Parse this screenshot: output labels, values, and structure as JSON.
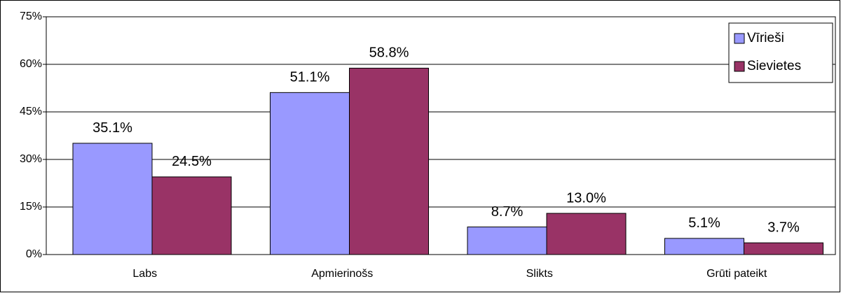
{
  "chart_data": {
    "type": "bar",
    "categories": [
      "Labs",
      "Apmierinošs",
      "Slikts",
      "Grūti pateikt"
    ],
    "series": [
      {
        "name": "Vīrieši",
        "color": "#9999ff",
        "values": [
          35.1,
          51.1,
          8.7,
          5.1
        ],
        "value_labels": [
          "35.1%",
          "51.1%",
          "8.7%",
          "5.1%"
        ]
      },
      {
        "name": "Sievietes",
        "color": "#993366",
        "values": [
          24.5,
          58.8,
          13.0,
          3.7
        ],
        "value_labels": [
          "24.5%",
          "58.8%",
          "13.0%",
          "3.7%"
        ]
      }
    ],
    "ylim": [
      0,
      75
    ],
    "yticks": [
      {
        "value": 0,
        "label": "0%"
      },
      {
        "value": 15,
        "label": "15%"
      },
      {
        "value": 30,
        "label": "30%"
      },
      {
        "value": 45,
        "label": "45%"
      },
      {
        "value": 60,
        "label": "60%"
      },
      {
        "value": 75,
        "label": "75%"
      }
    ],
    "grid": true,
    "legend": "upper right"
  }
}
